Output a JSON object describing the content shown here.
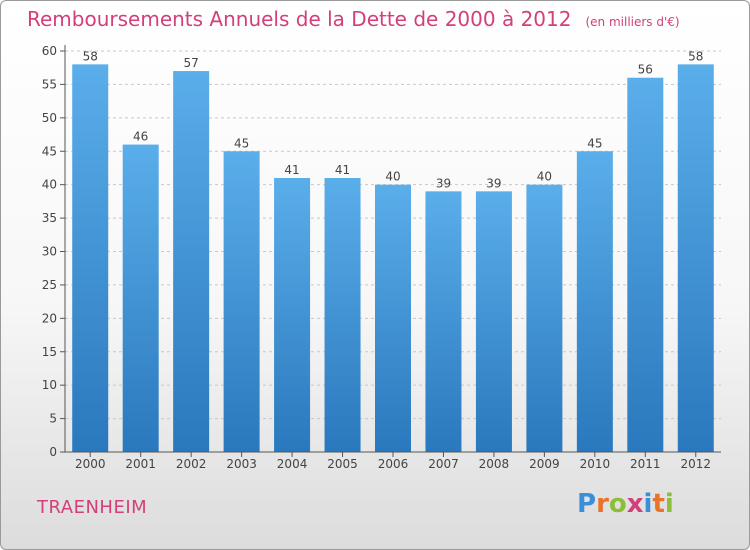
{
  "title": "Remboursements Annuels de la Dette de 2000 à 2012",
  "subtitle": "(en milliers d'€)",
  "commune": "TRAENHEIM",
  "logo": {
    "text": "Proxiti",
    "letters": [
      {
        "char": "P",
        "color": "#3a8fd8"
      },
      {
        "char": "r",
        "color": "#e8742b"
      },
      {
        "char": "o",
        "color": "#8bbf3a"
      },
      {
        "char": "x",
        "color": "#d33f7a"
      },
      {
        "char": "i",
        "color": "#3a8fd8"
      },
      {
        "char": "t",
        "color": "#e8742b"
      },
      {
        "char": "i",
        "color": "#8bbf3a"
      }
    ]
  },
  "colors": {
    "title": "#d33f7a",
    "bar_top": "#5aaeea",
    "bar_bottom": "#2a78bd",
    "grid": "#c8c8c8",
    "axis": "#555555"
  },
  "chart_data": {
    "type": "bar",
    "categories": [
      "2000",
      "2001",
      "2002",
      "2003",
      "2004",
      "2005",
      "2006",
      "2007",
      "2008",
      "2009",
      "2010",
      "2011",
      "2012"
    ],
    "values": [
      58,
      46,
      57,
      45,
      41,
      41,
      40,
      39,
      39,
      40,
      45,
      56,
      58
    ],
    "ylim": [
      0,
      60
    ],
    "yticks": [
      0,
      5,
      10,
      15,
      20,
      25,
      30,
      35,
      40,
      45,
      50,
      55,
      60
    ],
    "grid": true,
    "xlabel": "",
    "ylabel": ""
  }
}
